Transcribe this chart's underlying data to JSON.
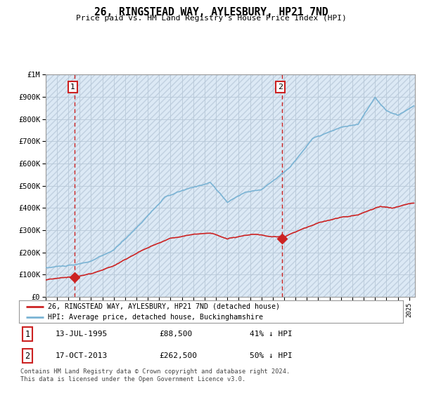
{
  "title": "26, RINGSTEAD WAY, AYLESBURY, HP21 7ND",
  "subtitle": "Price paid vs. HM Land Registry's House Price Index (HPI)",
  "ylim": [
    0,
    1000000
  ],
  "xlim_start": 1993.0,
  "xlim_end": 2025.5,
  "hpi_color": "#7ab3d4",
  "price_color": "#cc2222",
  "vline_color": "#cc2222",
  "bg_color": "#dce9f5",
  "fig_bg_color": "#ffffff",
  "hatch_color": "#c0d0e0",
  "legend_label_price": "26, RINGSTEAD WAY, AYLESBURY, HP21 7ND (detached house)",
  "legend_label_hpi": "HPI: Average price, detached house, Buckinghamshire",
  "transaction1_date": "13-JUL-1995",
  "transaction1_price": 88500,
  "transaction1_hpi": "41% ↓ HPI",
  "transaction1_year": 1995.53,
  "transaction2_date": "17-OCT-2013",
  "transaction2_price": 262500,
  "transaction2_hpi": "50% ↓ HPI",
  "transaction2_year": 2013.79,
  "footer": "Contains HM Land Registry data © Crown copyright and database right 2024.\nThis data is licensed under the Open Government Licence v3.0.",
  "yticks": [
    0,
    100000,
    200000,
    300000,
    400000,
    500000,
    600000,
    700000,
    800000,
    900000,
    1000000
  ],
  "ytick_labels": [
    "£0",
    "£100K",
    "£200K",
    "£300K",
    "£400K",
    "£500K",
    "£600K",
    "£700K",
    "£800K",
    "£900K",
    "£1M"
  ]
}
